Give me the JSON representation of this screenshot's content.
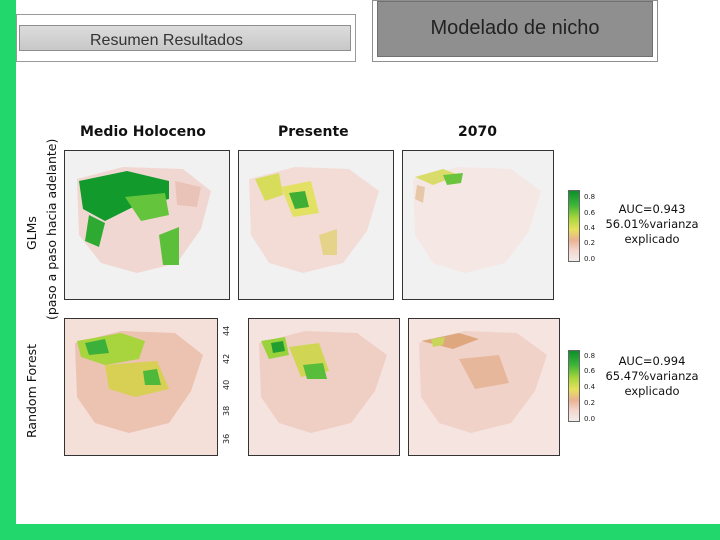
{
  "slide": {
    "section_title": "Resumen Resultados",
    "main_title": "Modelado de nicho"
  },
  "rows": {
    "glm_label": "GLMs",
    "glm_sublabel": "(paso a paso hacia adelante)",
    "rf_label": "Random Forest"
  },
  "columns": {
    "col1": "Medio Holoceno",
    "col2": "Presente",
    "col3": "2070"
  },
  "legend": {
    "ticks": [
      "0.8",
      "0.6",
      "0.4",
      "0.2",
      "0.0"
    ]
  },
  "results": {
    "glm": {
      "auc": "AUC=0.943",
      "variance": "56.01%varianza",
      "note": "explicado"
    },
    "rf": {
      "auc": "AUC=0.994",
      "variance": "65.47%varianza",
      "note": "explicado"
    }
  },
  "latitude_ticks": [
    "44",
    "42",
    "40",
    "38",
    "36"
  ],
  "colors": {
    "background_green": "#22d86c",
    "high_suitability": "#0c8f2a",
    "mid_suitability": "#e7e15c",
    "low_suitability": "#e9b290"
  }
}
